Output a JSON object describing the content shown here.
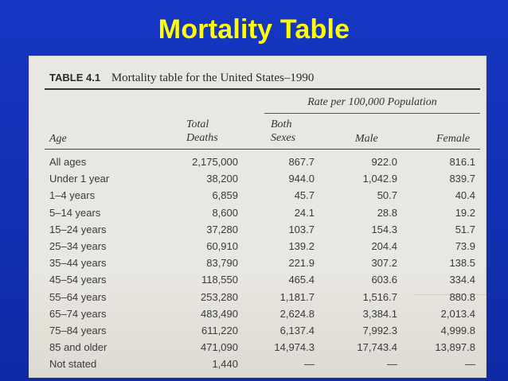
{
  "slide": {
    "title": "Mortality Table"
  },
  "table": {
    "number": "TABLE 4.1",
    "caption": "Mortality table for the United States–1990",
    "rate_header": "Rate per 100,000 Population",
    "headers": {
      "age": "Age",
      "total_deaths": [
        "Total",
        "Deaths"
      ],
      "both_sexes": [
        "Both",
        "Sexes"
      ],
      "male": "Male",
      "female": "Female"
    },
    "rows": [
      {
        "age": "All ages",
        "total": "2,175,000",
        "both": "867.7",
        "male": "922.0",
        "female": "816.1"
      },
      {
        "age": "Under 1 year",
        "total": "38,200",
        "both": "944.0",
        "male": "1,042.9",
        "female": "839.7"
      },
      {
        "age": "1–4 years",
        "total": "6,859",
        "both": "45.7",
        "male": "50.7",
        "female": "40.4"
      },
      {
        "age": "5–14 years",
        "total": "8,600",
        "both": "24.1",
        "male": "28.8",
        "female": "19.2"
      },
      {
        "age": "15–24 years",
        "total": "37,280",
        "both": "103.7",
        "male": "154.3",
        "female": "51.7"
      },
      {
        "age": "25–34 years",
        "total": "60,910",
        "both": "139.2",
        "male": "204.4",
        "female": "73.9"
      },
      {
        "age": "35–44 years",
        "total": "83,790",
        "both": "221.9",
        "male": "307.2",
        "female": "138.5"
      },
      {
        "age": "45–54 years",
        "total": "118,550",
        "both": "465.4",
        "male": "603.6",
        "female": "334.4"
      },
      {
        "age": "55–64 years",
        "total": "253,280",
        "both": "1,181.7",
        "male": "1,516.7",
        "female": "880.8"
      },
      {
        "age": "65–74 years",
        "total": "483,490",
        "both": "2,624.8",
        "male": "3,384.1",
        "female": "2,013.4"
      },
      {
        "age": "75–84 years",
        "total": "611,220",
        "both": "6,137.4",
        "male": "7,992.3",
        "female": "4,999.8"
      },
      {
        "age": "85 and older",
        "total": "471,090",
        "both": "14,974.3",
        "male": "17,743.4",
        "female": "13,897.8"
      },
      {
        "age": "Not stated",
        "total": "1,440",
        "both": "—",
        "male": "—",
        "female": "—"
      }
    ]
  }
}
